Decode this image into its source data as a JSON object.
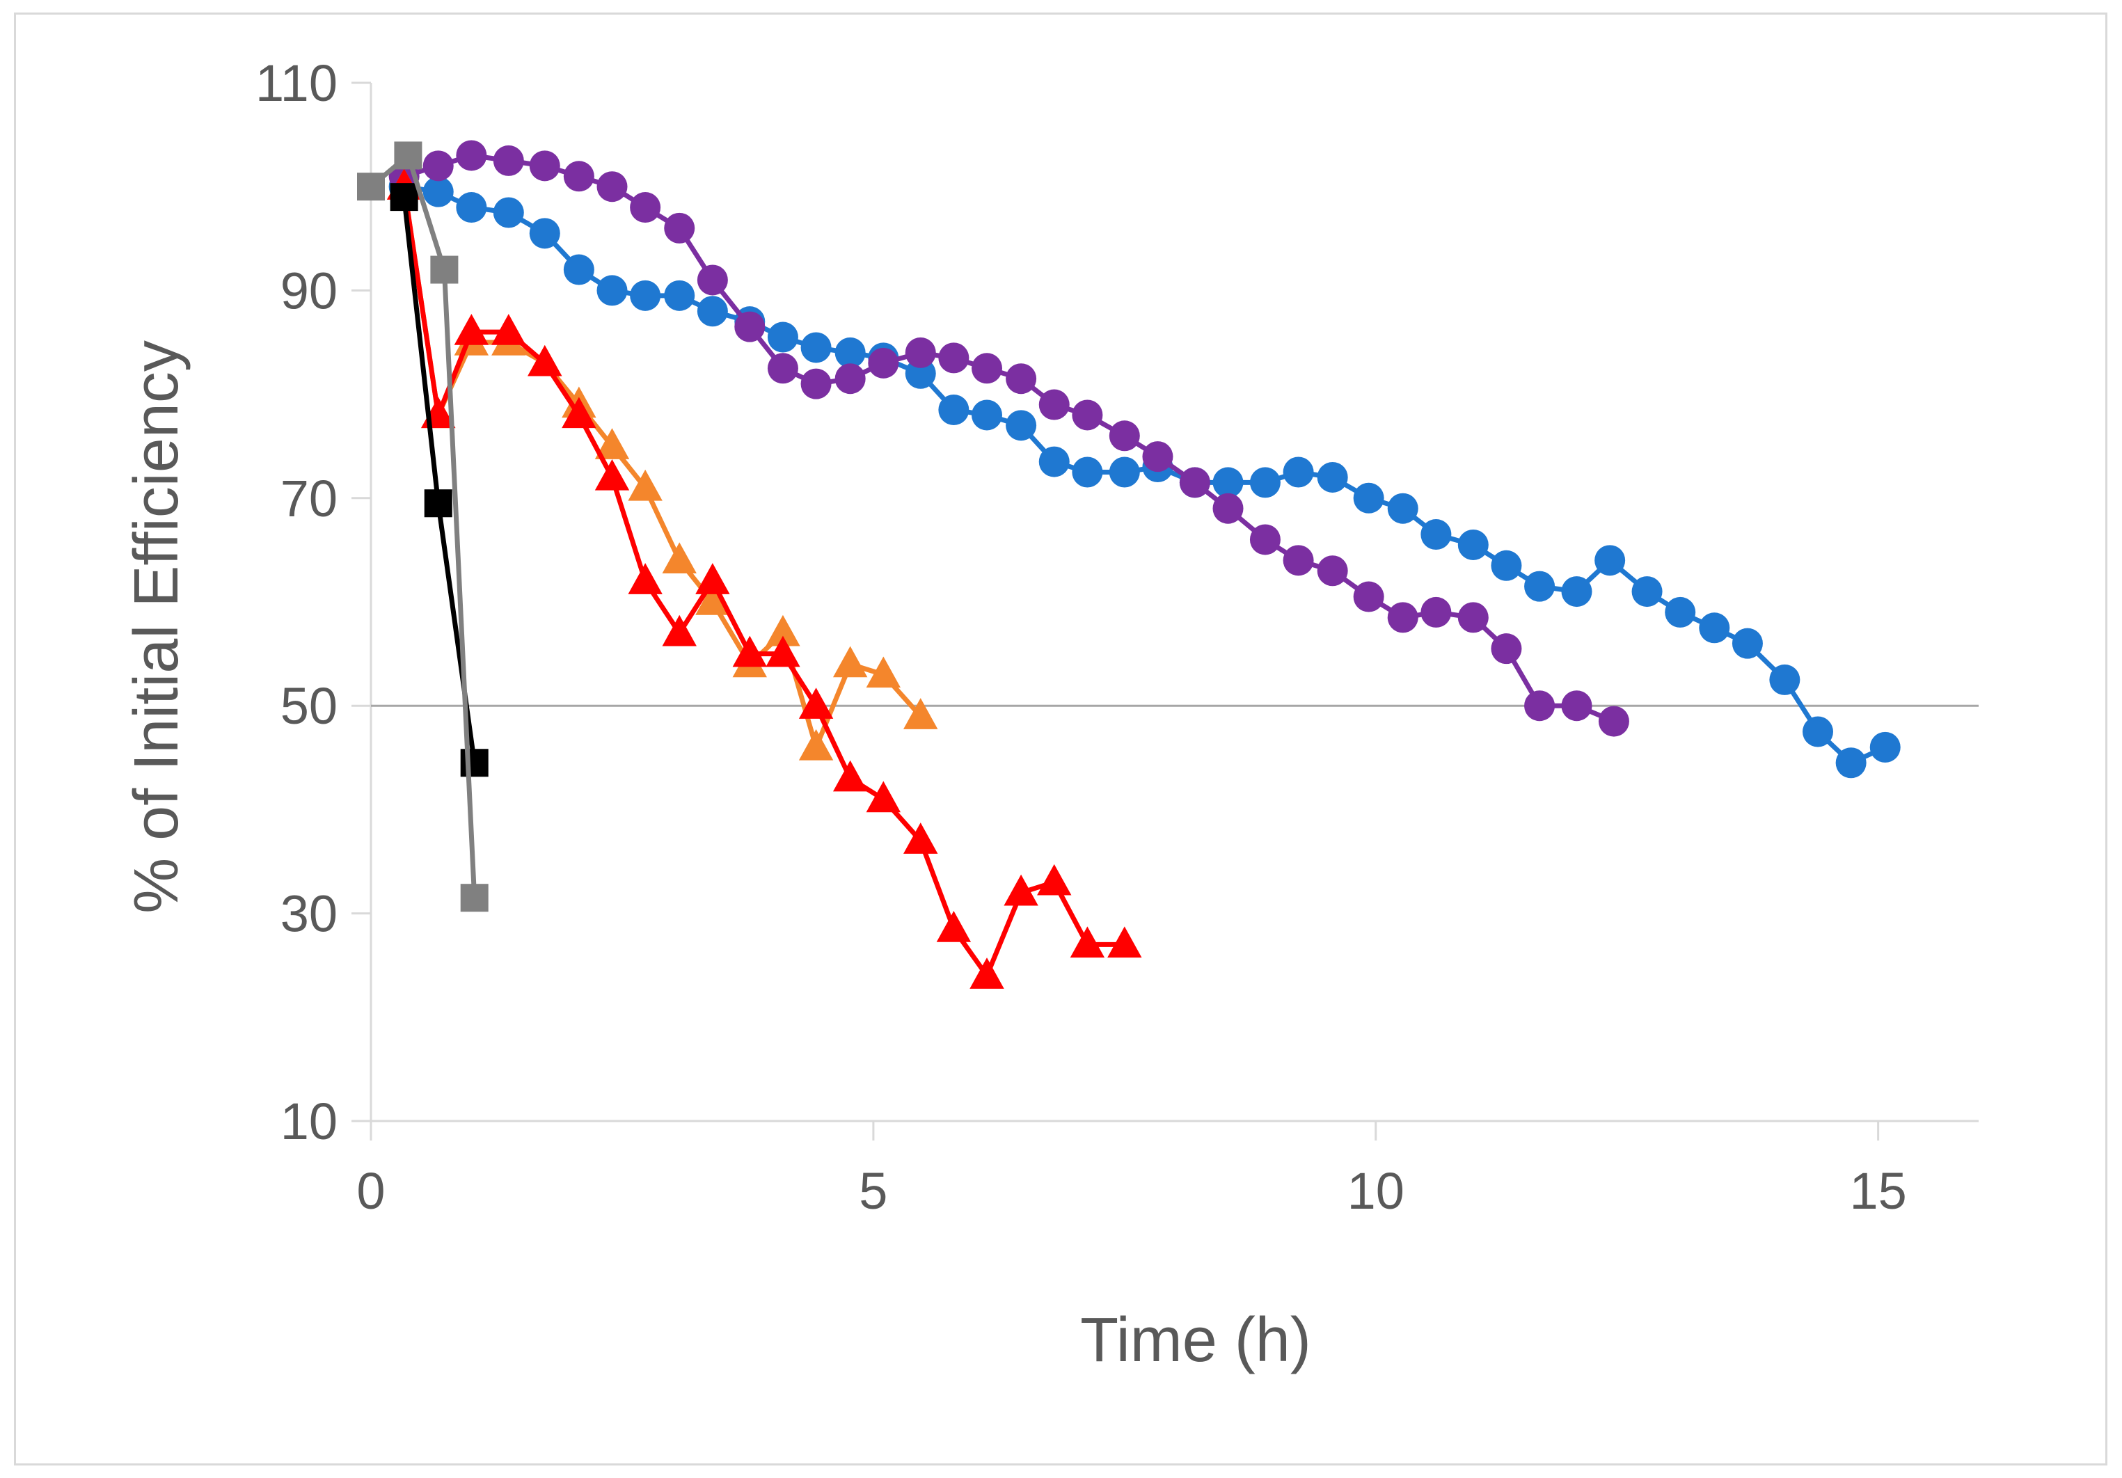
{
  "chart_data": {
    "type": "line",
    "title": "",
    "xlabel": "Time (h)",
    "ylabel": "% of Initial Efficiency",
    "xlim": [
      0,
      16
    ],
    "ylim": [
      10,
      110
    ],
    "xticks": [
      0,
      5,
      10,
      15
    ],
    "yticks": [
      10,
      30,
      50,
      70,
      90,
      110
    ],
    "reference_line": {
      "y": 50
    },
    "grid": false,
    "legend": "none",
    "series": [
      {
        "name": "blue-circles",
        "color": "#1f78d1",
        "marker": "circle",
        "x": [
          0.33,
          0.67,
          1.0,
          1.37,
          1.73,
          2.07,
          2.4,
          2.73,
          3.07,
          3.4,
          3.77,
          4.1,
          4.43,
          4.77,
          5.1,
          5.47,
          5.8,
          6.13,
          6.47,
          6.8,
          7.13,
          7.5,
          7.83,
          8.2,
          8.53,
          8.9,
          9.23,
          9.57,
          9.93,
          10.27,
          10.6,
          10.97,
          11.3,
          11.63,
          12.0,
          12.33,
          12.7,
          13.03,
          13.37,
          13.7,
          14.07,
          14.4,
          14.73,
          15.07
        ],
        "y": [
          100,
          99.5,
          98,
          97.5,
          95.5,
          92,
          90,
          89.5,
          89.5,
          88,
          87,
          85.5,
          84.5,
          84,
          83.5,
          82,
          78.5,
          78,
          77,
          73.5,
          72.5,
          72.5,
          73,
          71.5,
          71.5,
          71.5,
          72.5,
          72,
          70,
          69,
          66.5,
          65.5,
          63.5,
          61.5,
          61,
          64,
          61,
          59,
          57.5,
          56,
          52.5,
          47.5,
          44.5,
          46
        ]
      },
      {
        "name": "purple-circles",
        "color": "#7b2fa1",
        "marker": "circle",
        "x": [
          0.33,
          0.67,
          1.0,
          1.37,
          1.73,
          2.07,
          2.4,
          2.73,
          3.07,
          3.4,
          3.77,
          4.1,
          4.43,
          4.77,
          5.1,
          5.47,
          5.8,
          6.13,
          6.47,
          6.8,
          7.13,
          7.5,
          7.83,
          8.2,
          8.53,
          8.9,
          9.23,
          9.57,
          9.93,
          10.27,
          10.6,
          10.97,
          11.3,
          11.63,
          12.0,
          12.37
        ],
        "y": [
          101,
          102,
          103,
          102.5,
          102,
          101,
          100,
          98,
          96,
          91,
          86.5,
          82.5,
          81,
          81.5,
          83,
          84,
          83.5,
          82.5,
          81.5,
          79,
          78,
          76,
          74,
          71.5,
          69,
          66,
          64,
          63,
          60.5,
          58.5,
          59,
          58.5,
          55.5,
          50,
          50,
          48.5
        ]
      },
      {
        "name": "orange-triangles",
        "color": "#f4862c",
        "marker": "triangle",
        "x": [
          0.33,
          0.67,
          1.0,
          1.37,
          1.73,
          2.07,
          2.4,
          2.73,
          3.07,
          3.4,
          3.77,
          4.1,
          4.43,
          4.77,
          5.1,
          5.47
        ],
        "y": [
          100,
          78,
          85,
          85,
          83,
          79,
          75,
          71,
          64,
          60,
          54,
          57,
          46,
          54,
          53,
          49
        ]
      },
      {
        "name": "red-triangles",
        "color": "#ff0000",
        "marker": "triangle",
        "x": [
          0.33,
          0.67,
          1.0,
          1.37,
          1.73,
          2.07,
          2.4,
          2.73,
          3.07,
          3.4,
          3.77,
          4.1,
          4.43,
          4.77,
          5.1,
          5.47,
          5.8,
          6.13,
          6.47,
          6.8,
          7.13,
          7.5
        ],
        "y": [
          100,
          78,
          86,
          86,
          83,
          78,
          72,
          62,
          57,
          62,
          55,
          55,
          50,
          43,
          41,
          37,
          28.5,
          24,
          32,
          33,
          27,
          27
        ]
      },
      {
        "name": "black-squares",
        "color": "#000000",
        "marker": "square",
        "x": [
          0.33,
          0.67,
          1.03
        ],
        "y": [
          99,
          69.5,
          44.5
        ]
      },
      {
        "name": "gray-squares",
        "color": "#808080",
        "marker": "square",
        "x": [
          0.0,
          0.37,
          0.73,
          1.03
        ],
        "y": [
          100,
          103,
          92,
          31.5
        ]
      }
    ]
  }
}
